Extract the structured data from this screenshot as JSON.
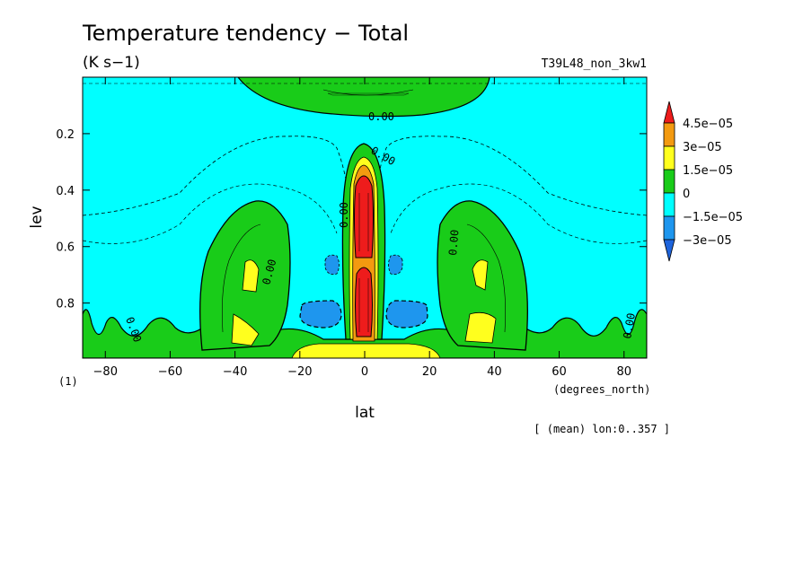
{
  "chart_data": {
    "type": "contour",
    "title": "Temperature tendency − Total",
    "units": "(K s−1)",
    "run_label": "T39L48_non_3kw1",
    "xlabel": "lat",
    "x_units": "(degrees_north)",
    "ylabel": "lev",
    "y_units": "(1)",
    "averaging_note": "[ (mean) lon:0..357 ]",
    "xlim": [
      -87,
      87
    ],
    "ylim": [
      0.995,
      0.0
    ],
    "y_inverted": true,
    "x_ticks": [
      -80,
      -60,
      -40,
      -20,
      0,
      20,
      40,
      60,
      80
    ],
    "x_tick_labels": [
      "−80",
      "−60",
      "−40",
      "−20",
      "0",
      "20",
      "40",
      "60",
      "80"
    ],
    "y_ticks": [
      0.2,
      0.4,
      0.6,
      0.8
    ],
    "y_tick_labels": [
      "0.2",
      "0.4",
      "0.6",
      "0.8"
    ],
    "contour_levels": [
      -3e-05,
      -1.5e-05,
      0,
      1.5e-05,
      3e-05,
      4.5e-05
    ],
    "colorbar": {
      "labels": [
        "4.5e−05",
        "3e−05",
        "1.5e−05",
        "0",
        "−1.5e−05",
        "−3e−05"
      ],
      "colors_top_to_bottom": [
        "#ee1c1c",
        "#f39a10",
        "#ffff1e",
        "#19cc19",
        "#00ffff",
        "#1e96ee",
        "#1e64dc"
      ]
    },
    "contour_line_labels": [
      "0.00",
      "0.00",
      "0.00",
      "0.00",
      "0.00",
      "0.00",
      "0.00"
    ],
    "features": [
      {
        "description": "heating core over equator",
        "lat": 0,
        "lev_range": [
          0.35,
          0.95
        ],
        "max_value_approx": 4.5e-05
      },
      {
        "description": "cooling background",
        "value_approx": -1.5e-05
      },
      {
        "description": "cooling pools",
        "lat": [
          -12,
          12
        ],
        "lev": 0.85,
        "value_approx": -3e-05
      },
      {
        "description": "warming lobes",
        "lat": [
          -37,
          38
        ],
        "lev_range": [
          0.5,
          1.0
        ],
        "value_approx": 1.5e-05
      }
    ]
  }
}
